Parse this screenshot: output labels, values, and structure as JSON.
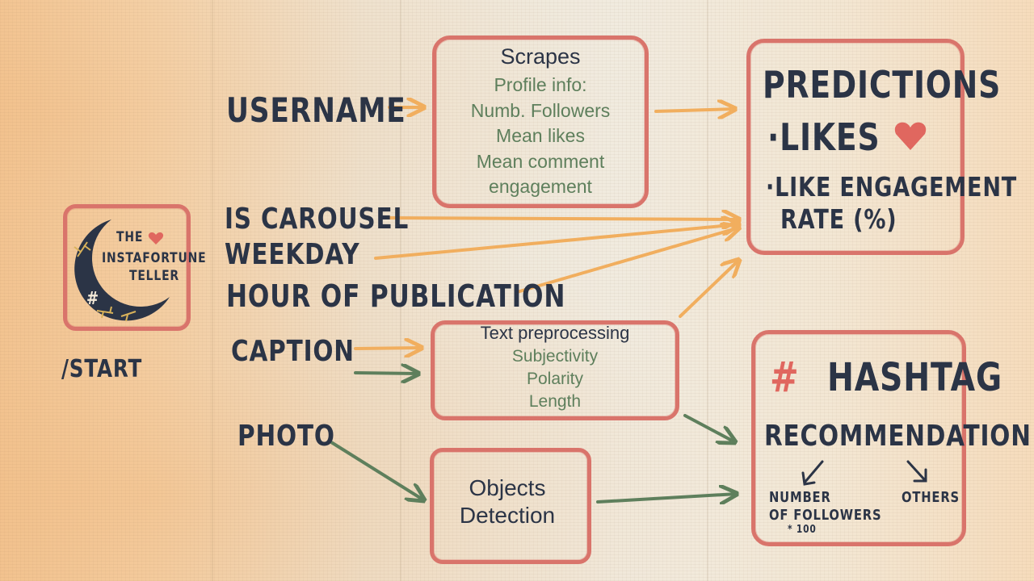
{
  "logo": {
    "line1": "THE",
    "line2": "INSTAFORTUNE",
    "line3": "TELLER",
    "hash": "#",
    "caption": "/START"
  },
  "inputs": {
    "username": "USERNAME",
    "is_carousel": "IS CAROUSEL",
    "weekday": "WEEKDAY",
    "hour": "HOUR OF PUBLICATION",
    "caption": "CAPTION",
    "photo": "PHOTO"
  },
  "scrapes": {
    "title": "Scrapes",
    "items": [
      "Profile info:",
      "Numb. Followers",
      "Mean likes",
      "Mean comment",
      "engagement"
    ]
  },
  "text_preprocessing": {
    "title": "Text preprocessing",
    "items": [
      "Subjectivity",
      "Polarity",
      "Length"
    ]
  },
  "objects": {
    "line1": "Objects",
    "line2": "Detection"
  },
  "predictions": {
    "title": "PREDICTIONS",
    "item1": "·LIKES",
    "item2_line1": "·LIKE ENGAGEMENT",
    "item2_line2": "RATE (%)"
  },
  "hashtag": {
    "hash": "#",
    "title": "HASHTAG",
    "subtitle": "RECOMMENDATION",
    "left_line1": "NUMBER",
    "left_line2": "OF FOLLOWERS",
    "left_line3": "* 100",
    "right": "OTHERS"
  },
  "colors": {
    "box_red": "#d9746b",
    "arrow_orange": "#f1ae5e",
    "arrow_green": "#5e7f5c",
    "ink": "#2b3446",
    "heart": "#e0675f"
  }
}
